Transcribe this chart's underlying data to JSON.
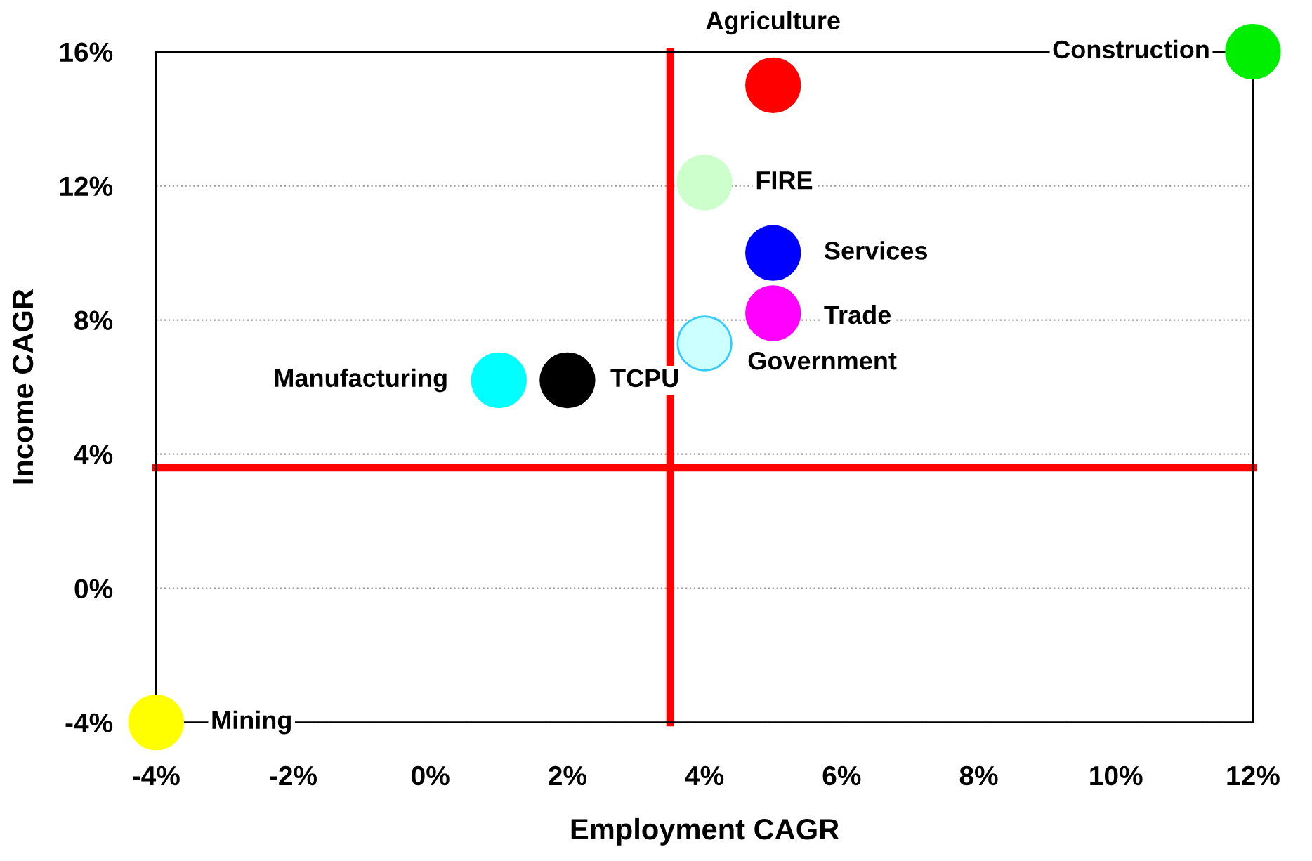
{
  "chart_data": {
    "type": "scatter",
    "xlabel": "Employment CAGR",
    "ylabel": "Income CAGR",
    "xlim": [
      -4,
      12
    ],
    "ylim": [
      -4,
      16
    ],
    "xticks": [
      {
        "value": -4,
        "label": "-4%"
      },
      {
        "value": -2,
        "label": "-2%"
      },
      {
        "value": 0,
        "label": "0%"
      },
      {
        "value": 2,
        "label": "2%"
      },
      {
        "value": 4,
        "label": "4%"
      },
      {
        "value": 6,
        "label": "6%"
      },
      {
        "value": 8,
        "label": "8%"
      },
      {
        "value": 10,
        "label": "10%"
      },
      {
        "value": 12,
        "label": "12%"
      }
    ],
    "yticks": [
      {
        "value": -4,
        "label": "-4%"
      },
      {
        "value": 0,
        "label": "0%"
      },
      {
        "value": 4,
        "label": "4%"
      },
      {
        "value": 8,
        "label": "8%"
      },
      {
        "value": 12,
        "label": "12%"
      },
      {
        "value": 16,
        "label": "16%"
      }
    ],
    "grid": "y",
    "marker": "circle",
    "series": [
      {
        "name": "Agriculture",
        "color": "#ff0000",
        "x": [
          5
        ],
        "values": [
          15
        ]
      },
      {
        "name": "Construction",
        "color": "#00ee00",
        "x": [
          12
        ],
        "values": [
          16
        ]
      },
      {
        "name": "FIRE",
        "color": "#ccffcc",
        "x": [
          4
        ],
        "values": [
          12.1
        ]
      },
      {
        "name": "Services",
        "color": "#0000ff",
        "x": [
          5
        ],
        "values": [
          10
        ]
      },
      {
        "name": "Trade",
        "color": "#ff00ff",
        "x": [
          5
        ],
        "values": [
          8.2
        ]
      },
      {
        "name": "Government",
        "color": "#ccffff",
        "x": [
          4
        ],
        "values": [
          7.3
        ]
      },
      {
        "name": "Manufacturing",
        "color": "#00ffff",
        "x": [
          1
        ],
        "values": [
          6.2
        ]
      },
      {
        "name": "TCPU",
        "color": "#000000",
        "x": [
          2
        ],
        "values": [
          6.2
        ]
      },
      {
        "name": "Mining",
        "color": "#ffff00",
        "x": [
          -4
        ],
        "values": [
          -4
        ]
      }
    ],
    "ref_lines": [
      {
        "axis": "x",
        "value": 3.5,
        "color": "#ff0000"
      },
      {
        "axis": "y",
        "value": 3.6,
        "color": "#ff0000"
      }
    ]
  }
}
